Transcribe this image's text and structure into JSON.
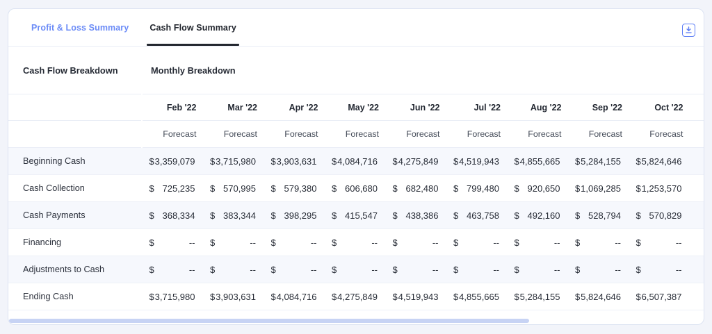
{
  "colors": {
    "accent_blue": "#5d7ef5",
    "tab_inactive_blue": "#6c8cf7",
    "active_tab_dark": "#23272f",
    "row_stripe": "#f6f8fd",
    "scrollbar_thumb": "#c7d3f4",
    "page_background": "#f2f4fa"
  },
  "icons": {
    "download": "download-icon"
  },
  "tabs": {
    "profit_loss_label": "Profit & Loss Summary",
    "cash_flow_label": "Cash Flow Summary",
    "active": "Cash Flow Summary"
  },
  "section": {
    "left_title": "Cash Flow Breakdown",
    "right_title": "Monthly Breakdown"
  },
  "table": {
    "type": "table",
    "currency_symbol": "$",
    "empty_value": "--",
    "forecast_label": "Forecast",
    "columns": [
      "Feb '22",
      "Mar '22",
      "Apr '22",
      "May '22",
      "Jun '22",
      "Jul '22",
      "Aug '22",
      "Sep '22",
      "Oct '22"
    ],
    "rows": [
      {
        "label": "Beginning Cash",
        "values": [
          "3,359,079",
          "3,715,980",
          "3,903,631",
          "4,084,716",
          "4,275,849",
          "4,519,943",
          "4,855,665",
          "5,284,155",
          "5,824,646"
        ]
      },
      {
        "label": "Cash Collection",
        "values": [
          "725,235",
          "570,995",
          "579,380",
          "606,680",
          "682,480",
          "799,480",
          "920,650",
          "1,069,285",
          "1,253,570"
        ]
      },
      {
        "label": "Cash Payments",
        "values": [
          "368,334",
          "383,344",
          "398,295",
          "415,547",
          "438,386",
          "463,758",
          "492,160",
          "528,794",
          "570,829"
        ]
      },
      {
        "label": "Financing",
        "values": [
          "--",
          "--",
          "--",
          "--",
          "--",
          "--",
          "--",
          "--",
          "--"
        ]
      },
      {
        "label": "Adjustments to Cash",
        "values": [
          "--",
          "--",
          "--",
          "--",
          "--",
          "--",
          "--",
          "--",
          "--"
        ]
      },
      {
        "label": "Ending Cash",
        "values": [
          "3,715,980",
          "3,903,631",
          "4,084,716",
          "4,275,849",
          "4,519,943",
          "4,855,665",
          "5,284,155",
          "5,824,646",
          "6,507,387"
        ]
      }
    ]
  }
}
